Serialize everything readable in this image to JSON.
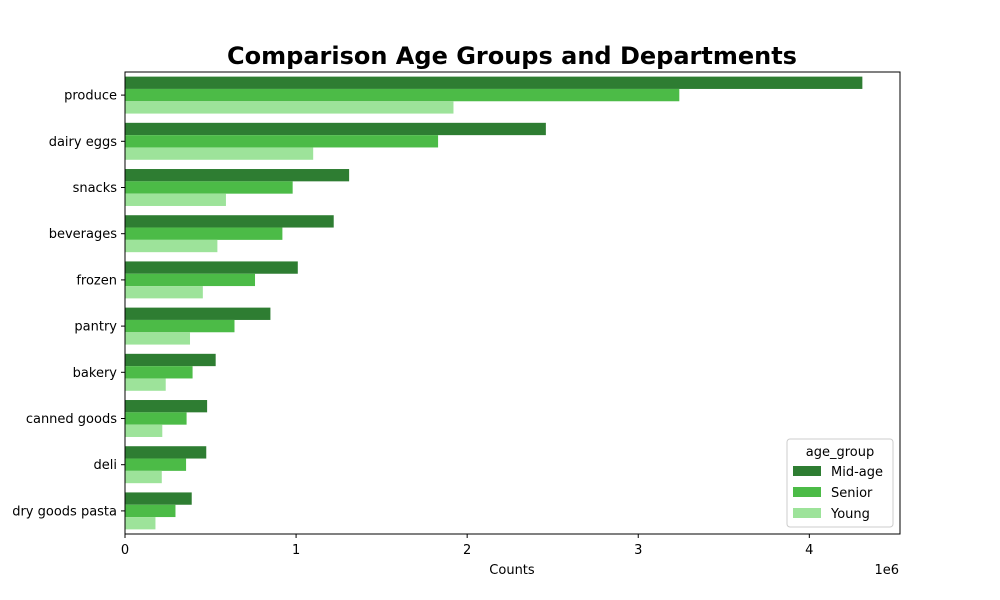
{
  "chart_data": {
    "type": "bar",
    "orientation": "horizontal",
    "title": "Comparison Age Groups and Departments",
    "xlabel": "Counts",
    "ylabel": "",
    "x_scale_label": "1e6",
    "x_scale": 1000000,
    "xlim": [
      0,
      4530000
    ],
    "x_ticks": [
      0,
      1,
      2,
      3,
      4
    ],
    "grid": false,
    "legend_position": "bottom-right",
    "legend_title": "age_group",
    "categories": [
      "produce",
      "dairy eggs",
      "snacks",
      "beverages",
      "frozen",
      "pantry",
      "bakery",
      "canned goods",
      "deli",
      "dry goods pasta"
    ],
    "series": [
      {
        "name": "Mid-age",
        "color": "#2e7d32",
        "values": [
          4310000,
          2460000,
          1310000,
          1220000,
          1010000,
          850000,
          530000,
          480000,
          475000,
          390000
        ]
      },
      {
        "name": "Senior",
        "color": "#4cbb47",
        "values": [
          3240000,
          1830000,
          980000,
          920000,
          760000,
          640000,
          395000,
          360000,
          357000,
          295000
        ]
      },
      {
        "name": "Young",
        "color": "#9de39a",
        "values": [
          1920000,
          1100000,
          590000,
          540000,
          455000,
          380000,
          238000,
          218000,
          215000,
          178000
        ]
      }
    ]
  }
}
